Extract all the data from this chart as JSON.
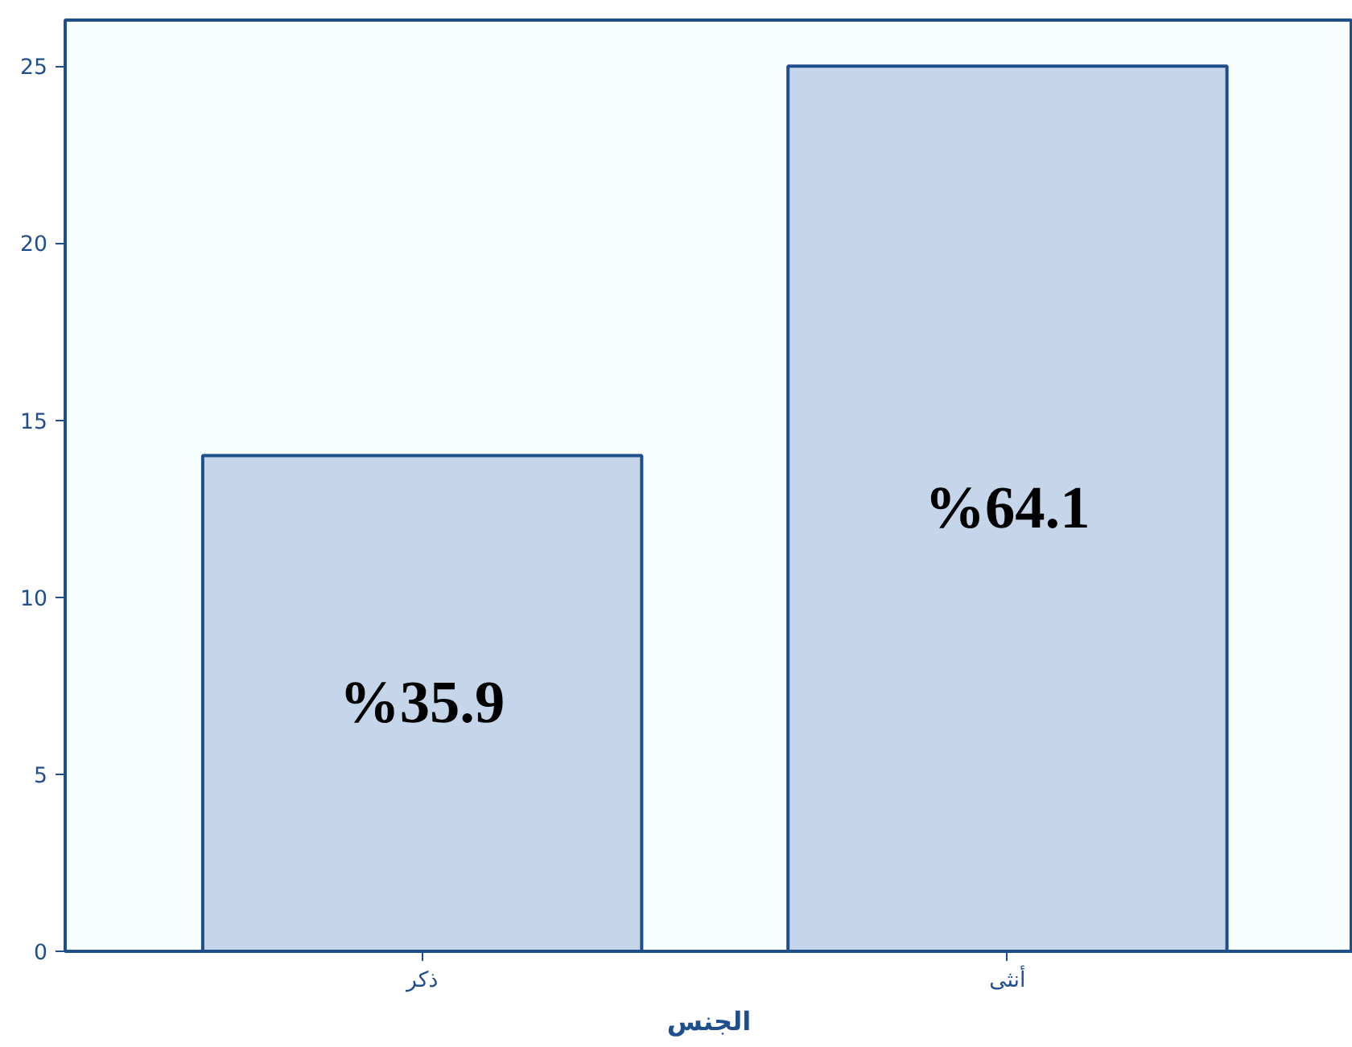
{
  "chart_data": {
    "type": "bar",
    "xlabel": "الجنس",
    "categories": [
      "ذكر",
      "أنثى"
    ],
    "values": [
      14,
      25
    ],
    "color": "#c5d5ea",
    "annotations": [
      "%35.9",
      "%64.1"
    ],
    "ylim": [
      0,
      26.3
    ],
    "yticks": [
      0,
      5,
      10,
      15,
      20,
      25
    ],
    "grid": false
  }
}
